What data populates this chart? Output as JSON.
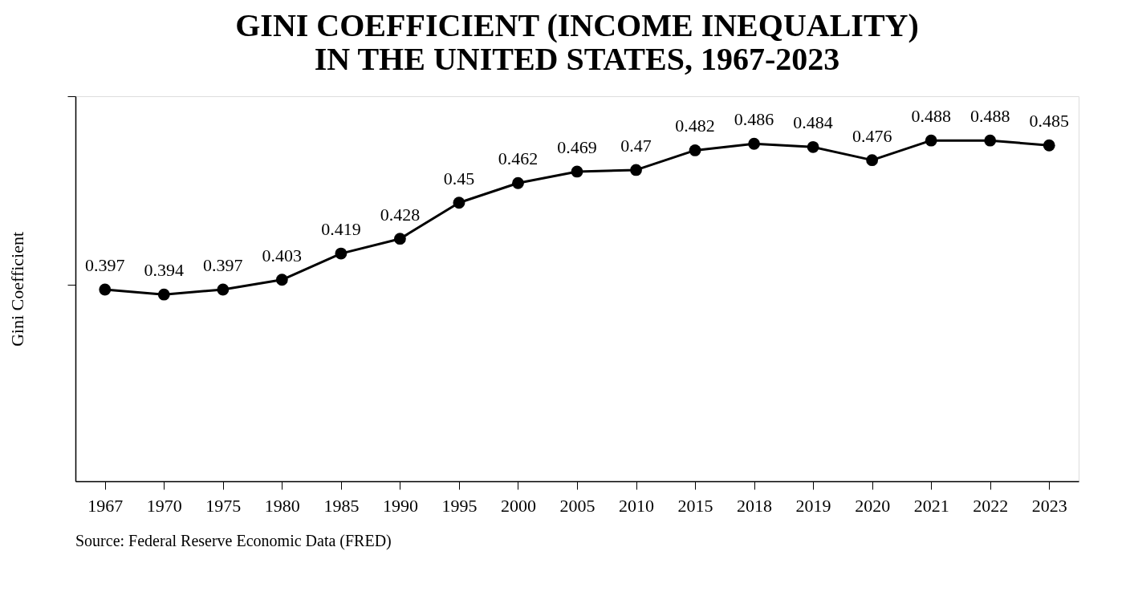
{
  "chart_data": {
    "type": "line",
    "title": "GINI COEFFICIENT (INCOME INEQUALITY)\nIN THE UNITED STATES, 1967-2023",
    "ylabel": "Gini Coefficient",
    "categories": [
      "1967",
      "1970",
      "1975",
      "1980",
      "1985",
      "1990",
      "1995",
      "2000",
      "2005",
      "2010",
      "2015",
      "2018",
      "2019",
      "2020",
      "2021",
      "2022",
      "2023"
    ],
    "series": [
      {
        "color": "#000000",
        "values": [
          0.397,
          0.394,
          0.397,
          0.403,
          0.419,
          0.428,
          0.45,
          0.462,
          0.469,
          0.47,
          0.482,
          0.486,
          0.484,
          0.476,
          0.488,
          0.488,
          0.485
        ]
      }
    ],
    "ylim": [
      0.28,
      0.515
    ],
    "yticks": [
      {
        "value": 0.4,
        "label": null
      },
      {
        "value": 0.515,
        "label": null
      }
    ],
    "tick_labels": "x",
    "grid": false,
    "legend": false,
    "marker": "circle",
    "line_style": "solid",
    "data_labels": true,
    "annotations": [
      "Source: Federal Reserve Economic Data (FRED)"
    ]
  }
}
